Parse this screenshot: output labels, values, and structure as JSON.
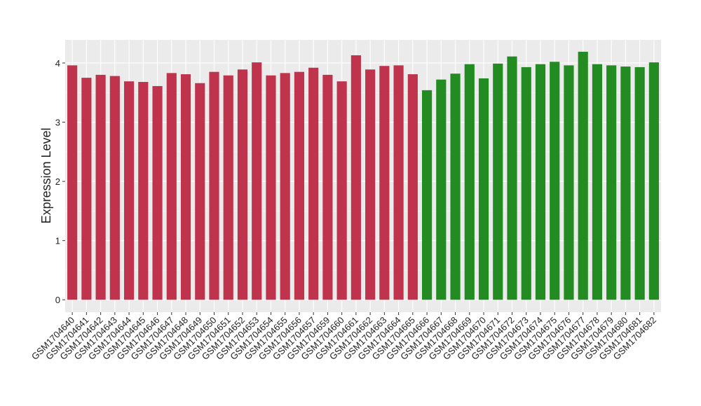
{
  "chart_data": {
    "type": "bar",
    "y_label": "Expression Level",
    "categories": [
      "GSM1704640",
      "GSM1704641",
      "GSM1704642",
      "GSM1704643",
      "GSM1704644",
      "GSM1704645",
      "GSM1704646",
      "GSM1704647",
      "GSM1704648",
      "GSM1704649",
      "GSM1704650",
      "GSM1704651",
      "GSM1704652",
      "GSM1704653",
      "GSM1704654",
      "GSM1704655",
      "GSM1704656",
      "GSM1704657",
      "GSM1704659",
      "GSM1704660",
      "GSM1704661",
      "GSM1704662",
      "GSM1704663",
      "GSM1704664",
      "GSM1704665",
      "GSM1704666",
      "GSM1704667",
      "GSM1704668",
      "GSM1704669",
      "GSM1704670",
      "GSM1704671",
      "GSM1704672",
      "GSM1704673",
      "GSM1704674",
      "GSM1704675",
      "GSM1704676",
      "GSM1704677",
      "GSM1704678",
      "GSM1704679",
      "GSM1704680",
      "GSM1704681",
      "GSM1704682"
    ],
    "values": [
      3.96,
      3.75,
      3.8,
      3.78,
      3.69,
      3.68,
      3.61,
      3.83,
      3.81,
      3.66,
      3.85,
      3.79,
      3.89,
      4.01,
      3.79,
      3.83,
      3.85,
      3.92,
      3.8,
      3.69,
      4.13,
      3.89,
      3.95,
      3.96,
      3.81,
      3.54,
      3.72,
      3.82,
      3.98,
      3.74,
      3.99,
      4.11,
      3.93,
      3.98,
      4.02,
      3.96,
      4.19,
      3.98,
      3.96,
      3.94,
      3.93,
      4.01
    ],
    "colors": [
      "#c0334d",
      "#c0334d",
      "#c0334d",
      "#c0334d",
      "#c0334d",
      "#c0334d",
      "#c0334d",
      "#c0334d",
      "#c0334d",
      "#c0334d",
      "#c0334d",
      "#c0334d",
      "#c0334d",
      "#c0334d",
      "#c0334d",
      "#c0334d",
      "#c0334d",
      "#c0334d",
      "#c0334d",
      "#c0334d",
      "#c0334d",
      "#c0334d",
      "#c0334d",
      "#c0334d",
      "#c0334d",
      "#228b22",
      "#228b22",
      "#228b22",
      "#228b22",
      "#228b22",
      "#228b22",
      "#228b22",
      "#228b22",
      "#228b22",
      "#228b22",
      "#228b22",
      "#228b22",
      "#228b22",
      "#228b22",
      "#228b22",
      "#228b22",
      "#228b22"
    ],
    "ylim": [
      -0.21,
      4.39
    ],
    "yticks": [
      0,
      1,
      2,
      3,
      4
    ],
    "grid": true
  }
}
